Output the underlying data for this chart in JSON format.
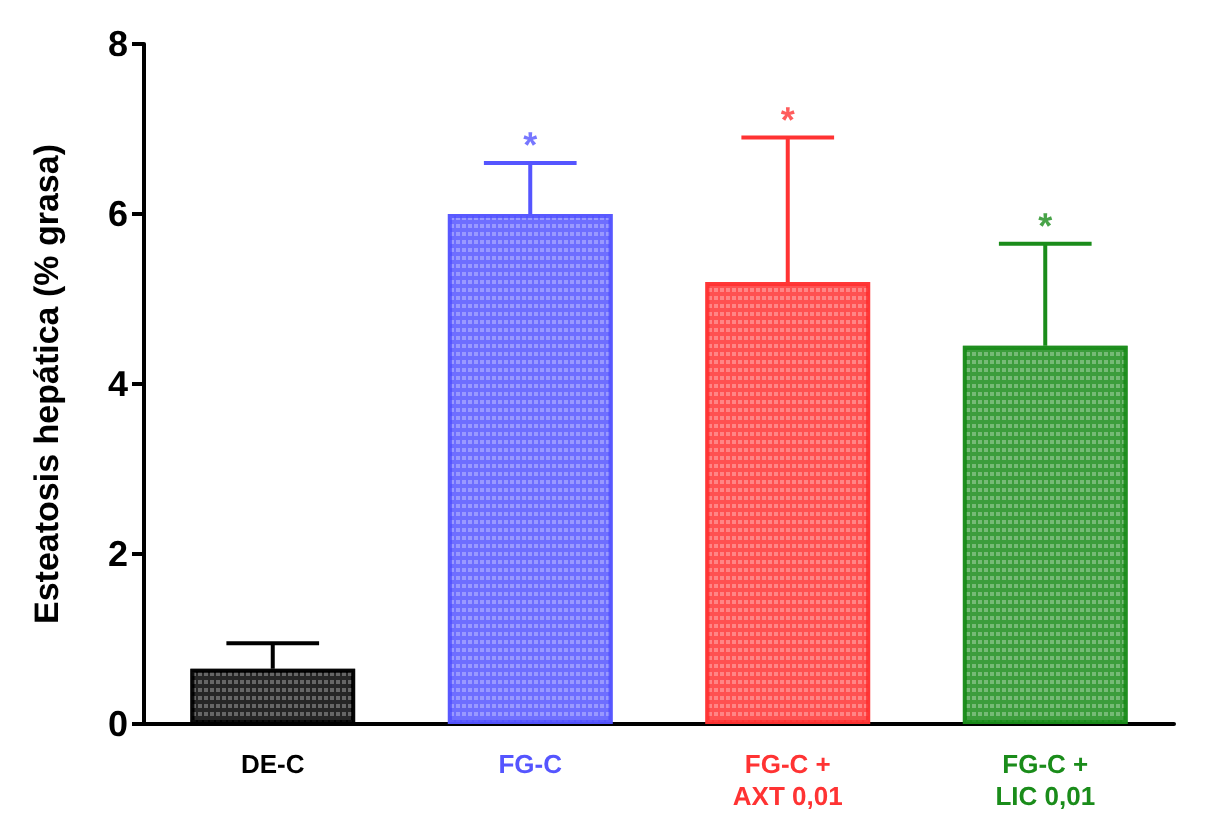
{
  "chart_data": {
    "type": "bar",
    "ylabel": "Esteatosis hepática (% grasa)",
    "categories": [
      "DE-C",
      "FG-C",
      "FG-C +\nAXT 0,01",
      "FG-C +\nLIC 0,01"
    ],
    "values": [
      0.65,
      6.0,
      5.2,
      4.45
    ],
    "colors": [
      "#000000",
      "#5555ff",
      "#ff3333",
      "#1a8c1a"
    ],
    "errors": [
      [
        0.65,
        0.95
      ],
      [
        6.0,
        6.6
      ],
      [
        5.2,
        6.9
      ],
      [
        4.45,
        5.65
      ]
    ],
    "ylim": [
      0,
      8
    ],
    "yticks": [
      0,
      2,
      4,
      6,
      8
    ],
    "grid": false,
    "annotations": [
      {
        "text": "*",
        "x": "FG-C",
        "y": 6.6
      },
      {
        "text": "*",
        "x": "FG-C +\nAXT 0,01",
        "y": 6.9
      },
      {
        "text": "*",
        "x": "FG-C +\nLIC 0,01",
        "y": 5.65
      }
    ]
  }
}
